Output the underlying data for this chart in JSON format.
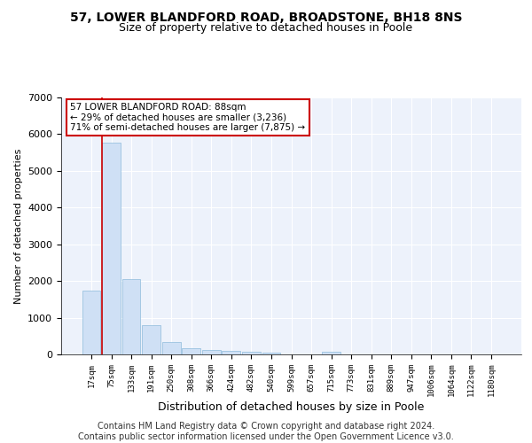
{
  "title1": "57, LOWER BLANDFORD ROAD, BROADSTONE, BH18 8NS",
  "title2": "Size of property relative to detached houses in Poole",
  "xlabel": "Distribution of detached houses by size in Poole",
  "ylabel": "Number of detached properties",
  "bar_color": "#cfe0f5",
  "bar_edge_color": "#7aafd4",
  "highlight_bar_index": 1,
  "marker_bar_index": 1,
  "background_color": "#edf2fb",
  "annotation_text": "57 LOWER BLANDFORD ROAD: 88sqm\n← 29% of detached houses are smaller (3,236)\n71% of semi-detached houses are larger (7,875) →",
  "annotation_box_color": "#ffffff",
  "annotation_box_edge_color": "#cc0000",
  "categories": [
    "17sqm",
    "75sqm",
    "133sqm",
    "191sqm",
    "250sqm",
    "308sqm",
    "366sqm",
    "424sqm",
    "482sqm",
    "540sqm",
    "599sqm",
    "657sqm",
    "715sqm",
    "773sqm",
    "831sqm",
    "889sqm",
    "947sqm",
    "1006sqm",
    "1064sqm",
    "1122sqm",
    "1180sqm"
  ],
  "values": [
    1750,
    5780,
    2050,
    800,
    340,
    180,
    120,
    105,
    75,
    60,
    0,
    0,
    65,
    0,
    0,
    0,
    0,
    0,
    0,
    0,
    0
  ],
  "ylim": [
    0,
    7000
  ],
  "yticks": [
    0,
    1000,
    2000,
    3000,
    4000,
    5000,
    6000,
    7000
  ],
  "footer": "Contains HM Land Registry data © Crown copyright and database right 2024.\nContains public sector information licensed under the Open Government Licence v3.0.",
  "title1_fontsize": 10,
  "title2_fontsize": 9,
  "footer_fontsize": 7,
  "vline_x": 1,
  "vline_color": "#cc0000"
}
